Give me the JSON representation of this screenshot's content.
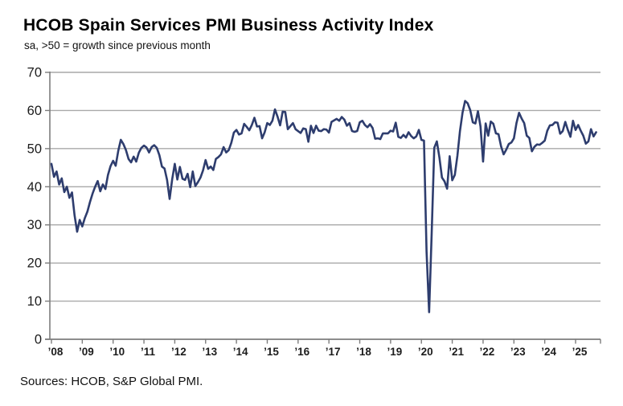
{
  "header": {
    "title": "HCOB Spain Services PMI Business Activity Index",
    "subtitle": "sa, >50 = growth since previous month"
  },
  "footer": {
    "source": "Sources: HCOB, S&P Global PMI."
  },
  "chart_data": {
    "type": "line",
    "title": "HCOB Spain Services PMI Business Activity Index",
    "subtitle": "sa, >50 = growth since previous month",
    "series_name": "Spain Services PMI Business Activity Index",
    "frequency": "monthly",
    "start_period": "2008-01",
    "end_period": "2025-09",
    "ylim": [
      0,
      70
    ],
    "grid": "horizontal",
    "legend": "none",
    "reference_level_note": "values above 50 indicate growth since previous month",
    "y_tick_labels": [
      "0",
      "10",
      "20",
      "30",
      "40",
      "50",
      "60",
      "70"
    ],
    "y_tick_values": [
      0,
      10,
      20,
      30,
      40,
      50,
      60,
      70
    ],
    "x_tick_labels": [
      "’08",
      "’09",
      "’10",
      "’11",
      "’12",
      "’13",
      "’14",
      "’15",
      "’16",
      "’17",
      "’18",
      "’19",
      "’20",
      "’21",
      "’22",
      "’23",
      "’24",
      "’25"
    ],
    "x_tick_years": [
      2008,
      2009,
      2010,
      2011,
      2012,
      2013,
      2014,
      2015,
      2016,
      2017,
      2018,
      2019,
      2020,
      2021,
      2022,
      2023,
      2024,
      2025
    ],
    "line_color": "#2e3d6e",
    "grid_color": "#a9a9a9",
    "axis_color": "#7d7d7d",
    "label_color": "#1c1c1c",
    "values": [
      46.0,
      42.6,
      44.0,
      40.6,
      42.2,
      38.6,
      40.0,
      37.1,
      38.5,
      32.5,
      28.2,
      31.3,
      29.6,
      31.8,
      33.5,
      36.0,
      38.2,
      40.0,
      41.5,
      38.8,
      40.6,
      39.4,
      43.1,
      45.4,
      46.8,
      45.5,
      49.4,
      52.3,
      51.2,
      49.6,
      47.3,
      46.4,
      47.9,
      46.6,
      48.9,
      50.2,
      50.8,
      50.3,
      49.0,
      50.4,
      50.9,
      50.2,
      48.3,
      45.3,
      44.8,
      41.8,
      36.8,
      42.0,
      46.0,
      41.9,
      45.2,
      42.1,
      41.8,
      43.4,
      39.9,
      44.0,
      40.2,
      41.2,
      42.4,
      44.3,
      47.0,
      44.7,
      45.3,
      44.4,
      47.3,
      47.8,
      48.5,
      50.4,
      49.0,
      49.6,
      51.5,
      54.2,
      54.9,
      53.7,
      54.0,
      56.5,
      55.7,
      54.8,
      56.2,
      58.1,
      55.8,
      55.9,
      52.7,
      54.3,
      56.7,
      56.2,
      57.3,
      60.3,
      58.4,
      56.1,
      59.7,
      59.6,
      55.1,
      55.9,
      56.7,
      55.1,
      54.6,
      54.1,
      55.3,
      55.1,
      51.8,
      56.0,
      54.1,
      56.0,
      54.7,
      54.6,
      55.1,
      55.0,
      54.2,
      57.0,
      57.4,
      57.8,
      57.3,
      58.3,
      57.6,
      56.0,
      56.7,
      54.6,
      54.4,
      54.6,
      56.9,
      57.3,
      56.2,
      55.6,
      56.4,
      55.4,
      52.6,
      52.7,
      52.5,
      54.0,
      54.0,
      54.0,
      54.7,
      54.5,
      56.8,
      53.1,
      52.8,
      53.6,
      52.9,
      54.3,
      53.3,
      52.7,
      53.2,
      54.9,
      52.3,
      52.1,
      23.0,
      7.1,
      27.9,
      50.2,
      51.9,
      47.7,
      42.4,
      41.4,
      39.5,
      48.0,
      41.7,
      43.1,
      48.1,
      54.6,
      59.4,
      62.5,
      61.9,
      60.1,
      56.9,
      56.6,
      59.8,
      55.8,
      46.6,
      56.6,
      53.4,
      57.1,
      56.5,
      54.0,
      53.8,
      50.6,
      48.5,
      49.7,
      51.2,
      51.6,
      52.7,
      56.7,
      59.4,
      57.9,
      56.7,
      53.4,
      52.8,
      49.3,
      50.5,
      51.1,
      51.0,
      51.5,
      52.1,
      54.7,
      56.1,
      56.2,
      56.9,
      56.8,
      53.9,
      54.6,
      57.0,
      54.9,
      53.1,
      57.3,
      54.9,
      56.2,
      54.7,
      53.4,
      51.3,
      51.9,
      55.1,
      53.2,
      54.3
    ]
  }
}
